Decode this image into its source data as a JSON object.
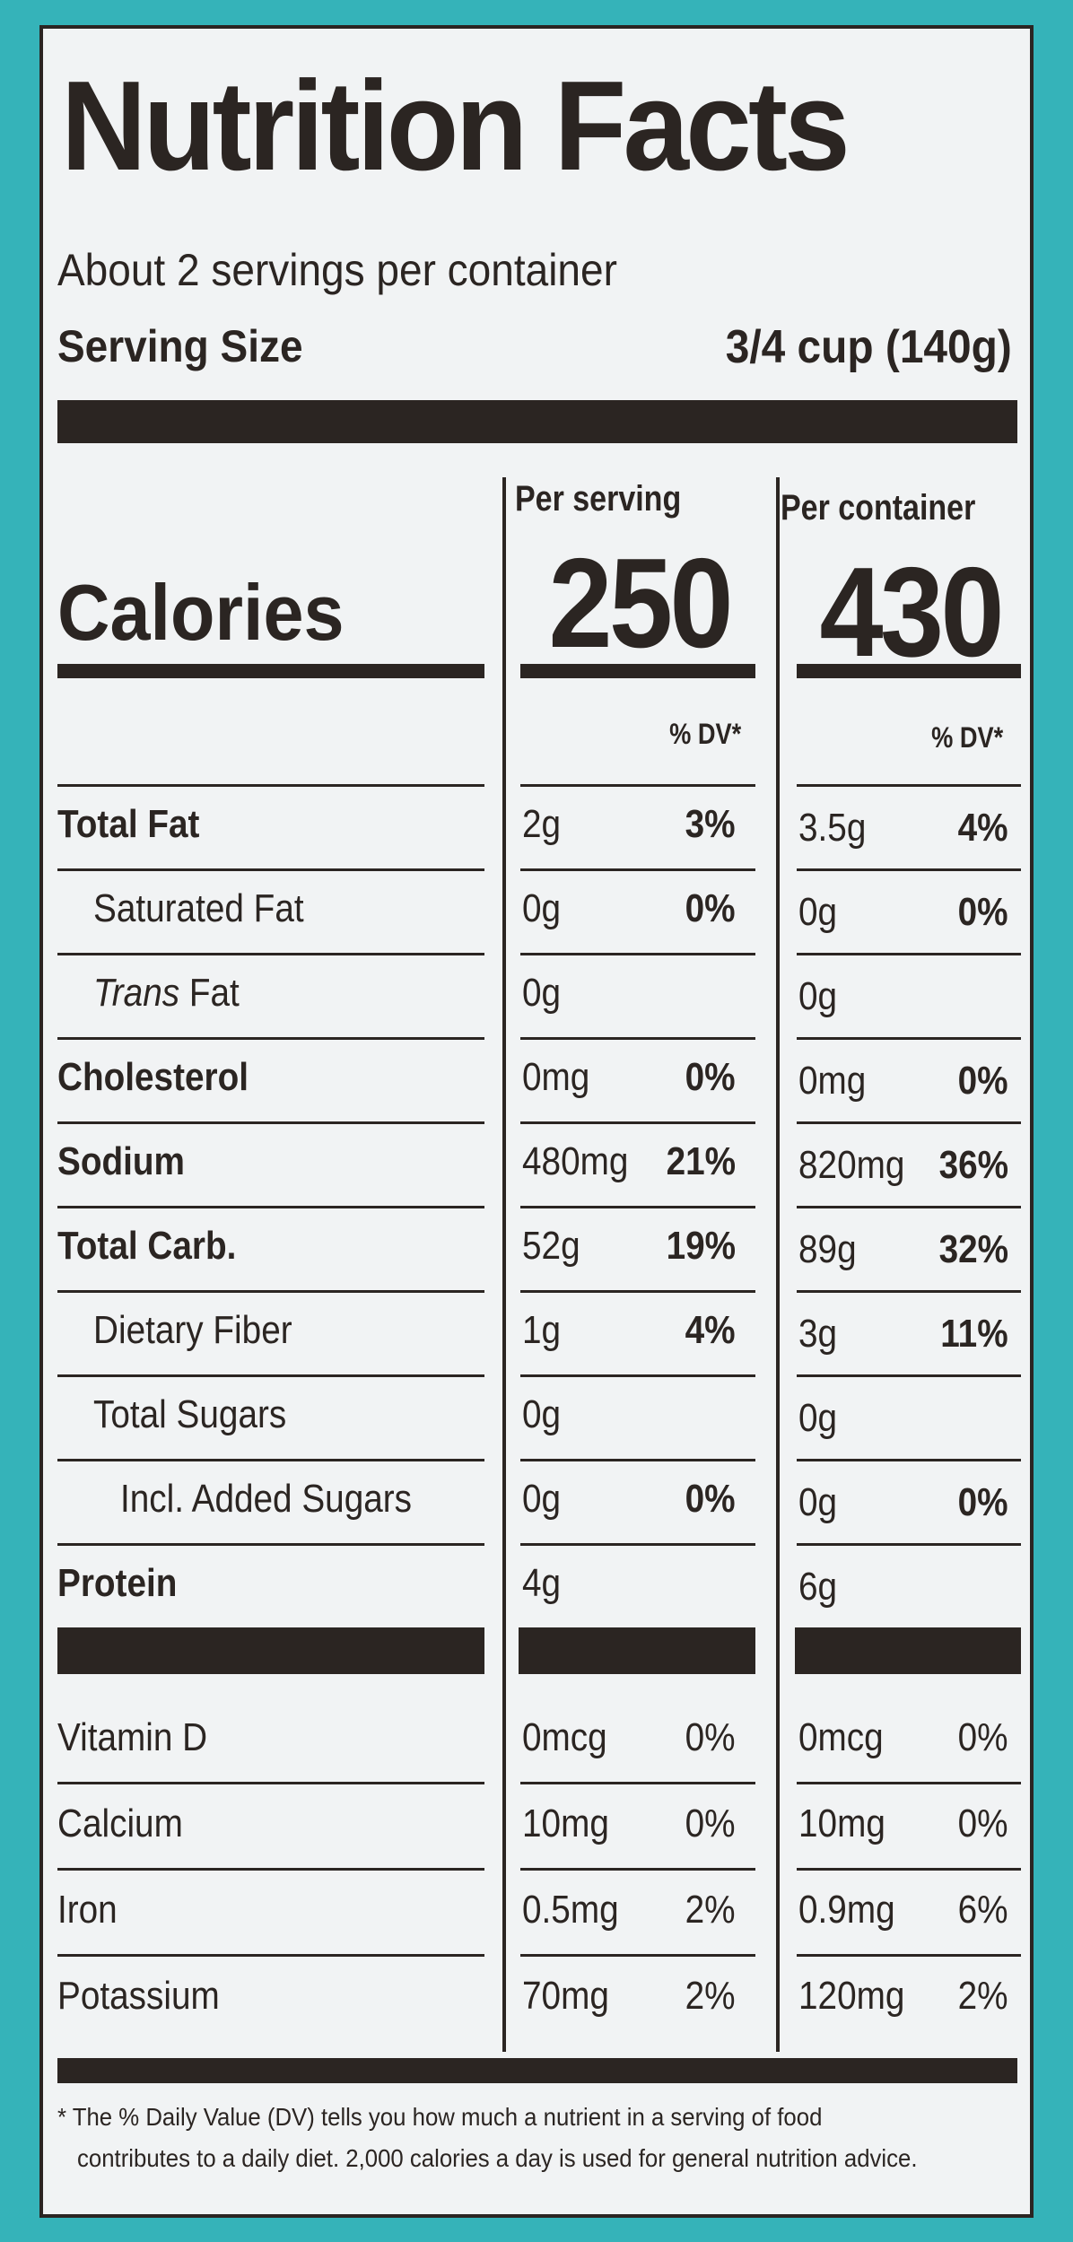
{
  "title": "Nutrition Facts",
  "servings_per_container": "About 2 servings per container",
  "serving_size_label": "Serving Size",
  "serving_size_value": "3/4 cup (140g)",
  "columns": {
    "per_serving": "Per serving",
    "per_container": "Per container",
    "dv_header": "% DV*"
  },
  "calories": {
    "label": "Calories",
    "per_serving": "250",
    "per_container": "430"
  },
  "nutrients": [
    {
      "label": "Total Fat",
      "bold": true,
      "indent": 0,
      "serv_amt": "2g",
      "serv_dv": "3%",
      "cont_amt": "3.5g",
      "cont_dv": "4%"
    },
    {
      "label": "Saturated Fat",
      "bold": false,
      "indent": 1,
      "serv_amt": "0g",
      "serv_dv": "0%",
      "cont_amt": "0g",
      "cont_dv": "0%"
    },
    {
      "label_italic": "Trans",
      "label": " Fat",
      "bold": false,
      "indent": 1,
      "serv_amt": "0g",
      "serv_dv": "",
      "cont_amt": "0g",
      "cont_dv": ""
    },
    {
      "label": "Cholesterol",
      "bold": true,
      "indent": 0,
      "serv_amt": "0mg",
      "serv_dv": "0%",
      "cont_amt": "0mg",
      "cont_dv": "0%"
    },
    {
      "label": "Sodium",
      "bold": true,
      "indent": 0,
      "serv_amt": "480mg",
      "serv_dv": "21%",
      "cont_amt": "820mg",
      "cont_dv": "36%"
    },
    {
      "label": "Total Carb.",
      "bold": true,
      "indent": 0,
      "serv_amt": "52g",
      "serv_dv": "19%",
      "cont_amt": "89g",
      "cont_dv": "32%"
    },
    {
      "label": "Dietary Fiber",
      "bold": false,
      "indent": 1,
      "serv_amt": "1g",
      "serv_dv": "4%",
      "cont_amt": "3g",
      "cont_dv": "11%"
    },
    {
      "label": "Total Sugars",
      "bold": false,
      "indent": 1,
      "serv_amt": "0g",
      "serv_dv": "",
      "cont_amt": "0g",
      "cont_dv": ""
    },
    {
      "label": "Incl. Added Sugars",
      "bold": false,
      "indent": 2,
      "serv_amt": "0g",
      "serv_dv": "0%",
      "cont_amt": "0g",
      "cont_dv": "0%"
    },
    {
      "label": "Protein",
      "bold": true,
      "indent": 0,
      "serv_amt": "4g",
      "serv_dv": "",
      "cont_amt": "6g",
      "cont_dv": ""
    }
  ],
  "vitamins": [
    {
      "label": "Vitamin D",
      "serv_amt": "0mcg",
      "serv_dv": "0%",
      "cont_amt": "0mcg",
      "cont_dv": "0%"
    },
    {
      "label": "Calcium",
      "serv_amt": "10mg",
      "serv_dv": "0%",
      "cont_amt": "10mg",
      "cont_dv": "0%"
    },
    {
      "label": "Iron",
      "serv_amt": "0.5mg",
      "serv_dv": "2%",
      "cont_amt": "0.9mg",
      "cont_dv": "6%"
    },
    {
      "label": "Potassium",
      "serv_amt": "70mg",
      "serv_dv": "2%",
      "cont_amt": "120mg",
      "cont_dv": "2%"
    }
  ],
  "footnote_line1": "* The % Daily Value (DV) tells you how much a nutrient in a serving of food",
  "footnote_line2": "contributes to a daily diet. 2,000 calories a day is used for general nutrition advice."
}
